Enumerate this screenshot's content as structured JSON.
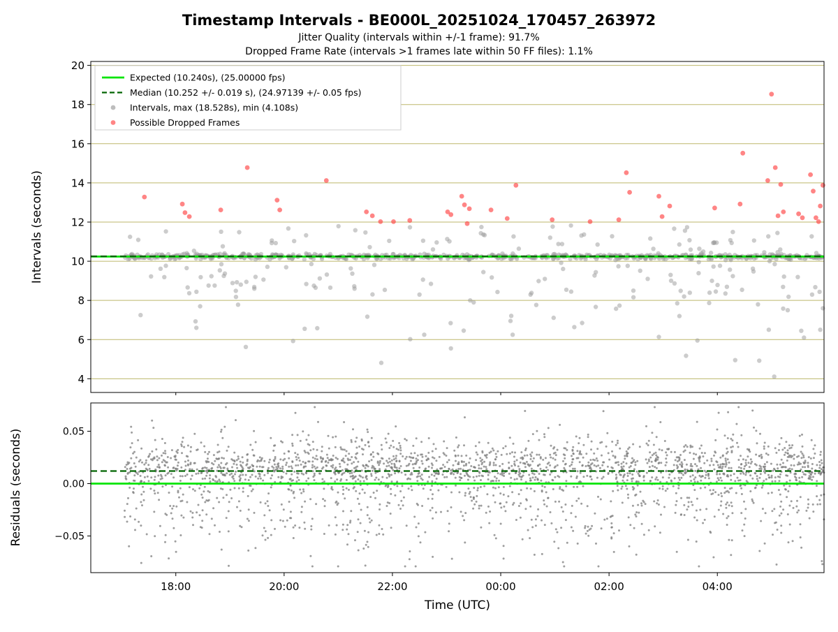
{
  "title": "Timestamp Intervals - BE000L_20251024_170457_263972",
  "subtitle_line1": "Jitter Quality (intervals within +/-1 frame): 91.7%",
  "subtitle_line2": "Dropped Frame Rate (intervals >1 frames late within 50 FF files): 1.1%",
  "xlabel": "Time (UTC)",
  "colors": {
    "expected": "#00e400",
    "median": "#006400",
    "intervals": "#9a9a9a",
    "dropped": "#ff4444",
    "grid": "#bdb76b",
    "residual": "#7d7d7d",
    "legend_border": "#cccccc",
    "spine": "#000000"
  },
  "x_ticks": [
    {
      "hour": 18,
      "label": "18:00"
    },
    {
      "hour": 20,
      "label": "20:00"
    },
    {
      "hour": 22,
      "label": "22:00"
    },
    {
      "hour": 24,
      "label": "00:00"
    },
    {
      "hour": 26,
      "label": "02:00"
    },
    {
      "hour": 28,
      "label": "04:00"
    }
  ],
  "legend_items": [
    {
      "marker": "line-solid",
      "color_key": "expected",
      "label": "Expected (10.240s), (25.00000 fps)"
    },
    {
      "marker": "line-dashed",
      "color_key": "median",
      "label": "Median (10.252 +/- 0.019 s), (24.97139 +/- 0.05 fps)"
    },
    {
      "marker": "dot",
      "color_key": "intervals",
      "label": "Intervals, max (18.528s), min (4.108s)"
    },
    {
      "marker": "dot",
      "color_key": "dropped",
      "label": "Possible Dropped Frames"
    }
  ],
  "chart_data": [
    {
      "type": "scatter",
      "title": "Timestamp Intervals - BE000L_20251024_170457_263972",
      "ylabel": "Intervals (seconds)",
      "xlabel": "Time (UTC)",
      "xlim": [
        16.43,
        29.97
      ],
      "ylim": [
        3.3,
        20.2
      ],
      "y_ticks": [
        4,
        6,
        8,
        10,
        12,
        14,
        16,
        18,
        20
      ],
      "y_tick_labels": [
        "4",
        "6",
        "8",
        "10",
        "12",
        "14",
        "16",
        "18",
        "20"
      ],
      "grid": "horizontal-y",
      "legend_position": "upper-left",
      "expected_interval_s": 10.24,
      "expected_fps": 25.0,
      "median_interval_s": 10.252,
      "median_interval_err_s": 0.019,
      "median_fps": 24.97139,
      "median_fps_err": 0.05,
      "max_interval_s": 18.528,
      "min_interval_s": 4.108,
      "jitter_quality_pct": 91.7,
      "dropped_frame_rate_pct": 1.1,
      "dropped_points": [
        [
          17.42,
          13.28
        ],
        [
          18.12,
          12.92
        ],
        [
          18.17,
          12.48
        ],
        [
          18.25,
          12.28
        ],
        [
          18.83,
          12.62
        ],
        [
          19.32,
          14.78
        ],
        [
          19.87,
          13.12
        ],
        [
          19.92,
          12.62
        ],
        [
          20.78,
          14.12
        ],
        [
          21.52,
          12.52
        ],
        [
          21.63,
          12.32
        ],
        [
          21.78,
          12.02
        ],
        [
          22.02,
          12.02
        ],
        [
          22.32,
          12.08
        ],
        [
          23.02,
          12.52
        ],
        [
          23.08,
          12.38
        ],
        [
          23.28,
          13.32
        ],
        [
          23.33,
          12.88
        ],
        [
          23.38,
          11.92
        ],
        [
          23.42,
          12.68
        ],
        [
          23.82,
          12.62
        ],
        [
          24.12,
          12.18
        ],
        [
          24.28,
          13.88
        ],
        [
          24.95,
          12.12
        ],
        [
          25.65,
          12.02
        ],
        [
          26.18,
          12.12
        ],
        [
          26.32,
          14.52
        ],
        [
          26.38,
          13.52
        ],
        [
          26.92,
          13.32
        ],
        [
          26.98,
          12.28
        ],
        [
          27.12,
          12.82
        ],
        [
          27.95,
          12.72
        ],
        [
          28.42,
          12.92
        ],
        [
          28.47,
          15.52
        ],
        [
          28.93,
          14.12
        ],
        [
          29.0,
          18.53
        ],
        [
          29.07,
          14.78
        ],
        [
          29.12,
          12.32
        ],
        [
          29.17,
          13.92
        ],
        [
          29.22,
          12.52
        ],
        [
          29.5,
          12.42
        ],
        [
          29.57,
          12.22
        ],
        [
          29.72,
          14.42
        ],
        [
          29.77,
          13.58
        ],
        [
          29.82,
          12.22
        ],
        [
          29.87,
          12.02
        ],
        [
          29.9,
          12.82
        ],
        [
          29.95,
          13.88
        ]
      ],
      "gray_outlier_points": [
        [
          17.35,
          7.25
        ],
        [
          18.2,
          9.65
        ],
        [
          18.38,
          6.6
        ],
        [
          18.45,
          7.7
        ],
        [
          19.15,
          7.78
        ],
        [
          19.45,
          8.6
        ],
        [
          20.38,
          6.55
        ],
        [
          20.55,
          8.75
        ],
        [
          21.3,
          8.6
        ],
        [
          22.5,
          8.3
        ],
        [
          23.08,
          5.55
        ],
        [
          23.5,
          7.9
        ],
        [
          24.18,
          6.95
        ],
        [
          24.22,
          6.25
        ],
        [
          24.55,
          8.3
        ],
        [
          25.3,
          8.45
        ],
        [
          26.45,
          8.5
        ],
        [
          27.3,
          7.2
        ],
        [
          27.9,
          9.0
        ],
        [
          28.33,
          4.95
        ],
        [
          28.75,
          7.8
        ],
        [
          28.95,
          6.5
        ],
        [
          29.05,
          4.108
        ],
        [
          29.3,
          7.5
        ],
        [
          29.55,
          6.45
        ],
        [
          29.6,
          6.1
        ],
        [
          29.75,
          8.3
        ],
        [
          29.9,
          6.5
        ],
        [
          29.95,
          7.6
        ]
      ],
      "render_hints": {
        "seed": 20251024,
        "band_count": 650,
        "band_sigma": 0.07,
        "mid_count": 155,
        "mid_low": 8.3,
        "mid_high": 11.85,
        "low_count": 30,
        "low_low": 4.6,
        "low_high": 8.2,
        "x_start": 17.05,
        "x_end": 29.95
      }
    },
    {
      "type": "scatter",
      "ylabel": "Residuals (seconds)",
      "xlim": [
        16.43,
        29.97
      ],
      "ylim": [
        -0.085,
        0.077
      ],
      "y_ticks": [
        -0.05,
        0.0,
        0.05
      ],
      "y_tick_labels": [
        "−0.05",
        "0.00",
        "0.05"
      ],
      "grid": "none",
      "expected_residual_s": 0.0,
      "median_residual_s": 0.012,
      "render_hints": {
        "seed": 97,
        "count": 2450,
        "band_frac": 0.55,
        "band_mu": 0.016,
        "band_sigma": 0.011,
        "wide_mu": -0.006,
        "wide_sigma": 0.031,
        "clip_low": -0.079,
        "clip_high": 0.073,
        "x_start": 17.05,
        "x_end": 29.97
      }
    }
  ]
}
